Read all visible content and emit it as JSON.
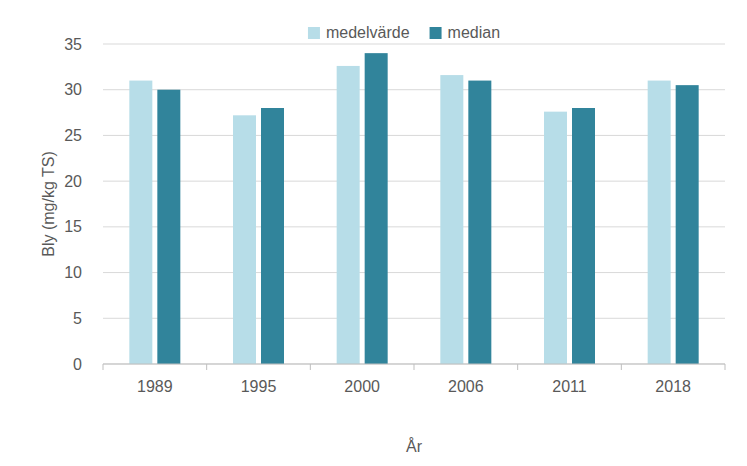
{
  "chart_data": {
    "type": "bar",
    "x_label": "År",
    "y_label": "Bly (mg/kg TS)",
    "categories": [
      "1989",
      "1995",
      "2000",
      "2006",
      "2011",
      "2018"
    ],
    "series": [
      {
        "name": "medelvärde",
        "color": "#b7dde8",
        "values": [
          31.0,
          27.2,
          32.6,
          31.6,
          27.6,
          31.0
        ]
      },
      {
        "name": "median",
        "color": "#31849b",
        "values": [
          30.0,
          28.0,
          34.0,
          31.0,
          28.0,
          30.5
        ]
      }
    ],
    "ylim": [
      0,
      35
    ],
    "yticks": [
      0,
      5,
      10,
      15,
      20,
      25,
      30,
      35
    ],
    "grid": true,
    "legend": "top"
  }
}
